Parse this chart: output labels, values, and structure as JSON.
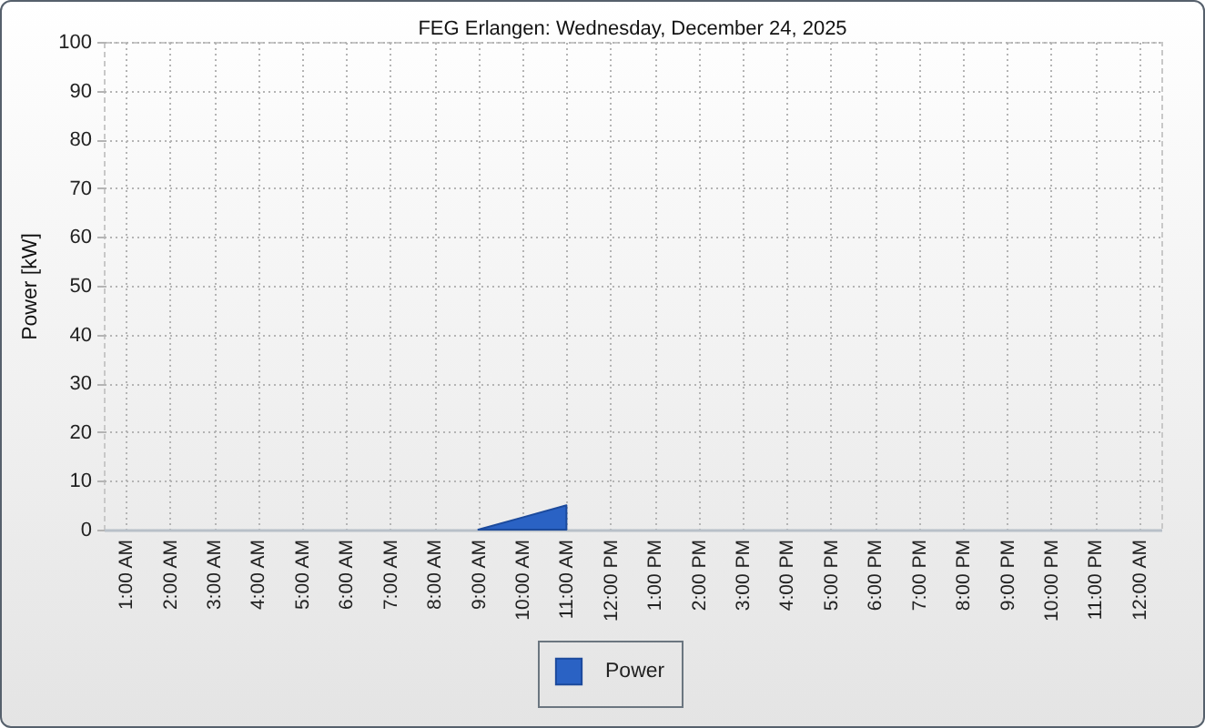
{
  "chart_data": {
    "type": "area",
    "title": "FEG Erlangen: Wednesday, December 24, 2025",
    "ylabel": "Power [kW]",
    "categories": [
      "1:00 AM",
      "2:00 AM",
      "3:00 AM",
      "4:00 AM",
      "5:00 AM",
      "6:00 AM",
      "7:00 AM",
      "8:00 AM",
      "9:00 AM",
      "10:00 AM",
      "11:00 AM",
      "12:00 PM",
      "1:00 PM",
      "2:00 PM",
      "3:00 PM",
      "4:00 PM",
      "5:00 PM",
      "6:00 PM",
      "7:00 PM",
      "8:00 PM",
      "9:00 PM",
      "10:00 PM",
      "11:00 PM",
      "12:00 AM"
    ],
    "series": [
      {
        "name": "Power",
        "color": "#2a62c4",
        "values": [
          null,
          null,
          null,
          null,
          null,
          null,
          null,
          null,
          0,
          2.5,
          5,
          null,
          null,
          null,
          null,
          null,
          null,
          null,
          null,
          null,
          null,
          null,
          null,
          null
        ]
      }
    ],
    "ylim": [
      0,
      100
    ],
    "yticks": [
      0,
      10,
      20,
      30,
      40,
      50,
      60,
      70,
      80,
      90,
      100
    ],
    "grid": true,
    "legend": "bottom"
  }
}
